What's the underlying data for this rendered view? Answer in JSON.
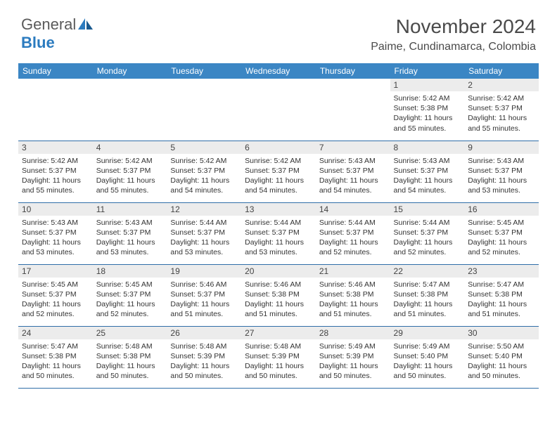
{
  "logo": {
    "line1": "General",
    "line2": "Blue"
  },
  "title": "November 2024",
  "location": "Paime, Cundinamarca, Colombia",
  "header_bg": "#3b86c4",
  "header_fg": "#ffffff",
  "dayheaders": [
    "Sunday",
    "Monday",
    "Tuesday",
    "Wednesday",
    "Thursday",
    "Friday",
    "Saturday"
  ],
  "weeks": [
    [
      null,
      null,
      null,
      null,
      null,
      {
        "n": "1",
        "sr": "5:42 AM",
        "ss": "5:38 PM",
        "dl": "11 hours and 55 minutes."
      },
      {
        "n": "2",
        "sr": "5:42 AM",
        "ss": "5:37 PM",
        "dl": "11 hours and 55 minutes."
      }
    ],
    [
      {
        "n": "3",
        "sr": "5:42 AM",
        "ss": "5:37 PM",
        "dl": "11 hours and 55 minutes."
      },
      {
        "n": "4",
        "sr": "5:42 AM",
        "ss": "5:37 PM",
        "dl": "11 hours and 55 minutes."
      },
      {
        "n": "5",
        "sr": "5:42 AM",
        "ss": "5:37 PM",
        "dl": "11 hours and 54 minutes."
      },
      {
        "n": "6",
        "sr": "5:42 AM",
        "ss": "5:37 PM",
        "dl": "11 hours and 54 minutes."
      },
      {
        "n": "7",
        "sr": "5:43 AM",
        "ss": "5:37 PM",
        "dl": "11 hours and 54 minutes."
      },
      {
        "n": "8",
        "sr": "5:43 AM",
        "ss": "5:37 PM",
        "dl": "11 hours and 54 minutes."
      },
      {
        "n": "9",
        "sr": "5:43 AM",
        "ss": "5:37 PM",
        "dl": "11 hours and 53 minutes."
      }
    ],
    [
      {
        "n": "10",
        "sr": "5:43 AM",
        "ss": "5:37 PM",
        "dl": "11 hours and 53 minutes."
      },
      {
        "n": "11",
        "sr": "5:43 AM",
        "ss": "5:37 PM",
        "dl": "11 hours and 53 minutes."
      },
      {
        "n": "12",
        "sr": "5:44 AM",
        "ss": "5:37 PM",
        "dl": "11 hours and 53 minutes."
      },
      {
        "n": "13",
        "sr": "5:44 AM",
        "ss": "5:37 PM",
        "dl": "11 hours and 53 minutes."
      },
      {
        "n": "14",
        "sr": "5:44 AM",
        "ss": "5:37 PM",
        "dl": "11 hours and 52 minutes."
      },
      {
        "n": "15",
        "sr": "5:44 AM",
        "ss": "5:37 PM",
        "dl": "11 hours and 52 minutes."
      },
      {
        "n": "16",
        "sr": "5:45 AM",
        "ss": "5:37 PM",
        "dl": "11 hours and 52 minutes."
      }
    ],
    [
      {
        "n": "17",
        "sr": "5:45 AM",
        "ss": "5:37 PM",
        "dl": "11 hours and 52 minutes."
      },
      {
        "n": "18",
        "sr": "5:45 AM",
        "ss": "5:37 PM",
        "dl": "11 hours and 52 minutes."
      },
      {
        "n": "19",
        "sr": "5:46 AM",
        "ss": "5:37 PM",
        "dl": "11 hours and 51 minutes."
      },
      {
        "n": "20",
        "sr": "5:46 AM",
        "ss": "5:38 PM",
        "dl": "11 hours and 51 minutes."
      },
      {
        "n": "21",
        "sr": "5:46 AM",
        "ss": "5:38 PM",
        "dl": "11 hours and 51 minutes."
      },
      {
        "n": "22",
        "sr": "5:47 AM",
        "ss": "5:38 PM",
        "dl": "11 hours and 51 minutes."
      },
      {
        "n": "23",
        "sr": "5:47 AM",
        "ss": "5:38 PM",
        "dl": "11 hours and 51 minutes."
      }
    ],
    [
      {
        "n": "24",
        "sr": "5:47 AM",
        "ss": "5:38 PM",
        "dl": "11 hours and 50 minutes."
      },
      {
        "n": "25",
        "sr": "5:48 AM",
        "ss": "5:38 PM",
        "dl": "11 hours and 50 minutes."
      },
      {
        "n": "26",
        "sr": "5:48 AM",
        "ss": "5:39 PM",
        "dl": "11 hours and 50 minutes."
      },
      {
        "n": "27",
        "sr": "5:48 AM",
        "ss": "5:39 PM",
        "dl": "11 hours and 50 minutes."
      },
      {
        "n": "28",
        "sr": "5:49 AM",
        "ss": "5:39 PM",
        "dl": "11 hours and 50 minutes."
      },
      {
        "n": "29",
        "sr": "5:49 AM",
        "ss": "5:40 PM",
        "dl": "11 hours and 50 minutes."
      },
      {
        "n": "30",
        "sr": "5:50 AM",
        "ss": "5:40 PM",
        "dl": "11 hours and 50 minutes."
      }
    ]
  ],
  "labels": {
    "sunrise": "Sunrise:",
    "sunset": "Sunset:",
    "daylight": "Daylight:"
  }
}
